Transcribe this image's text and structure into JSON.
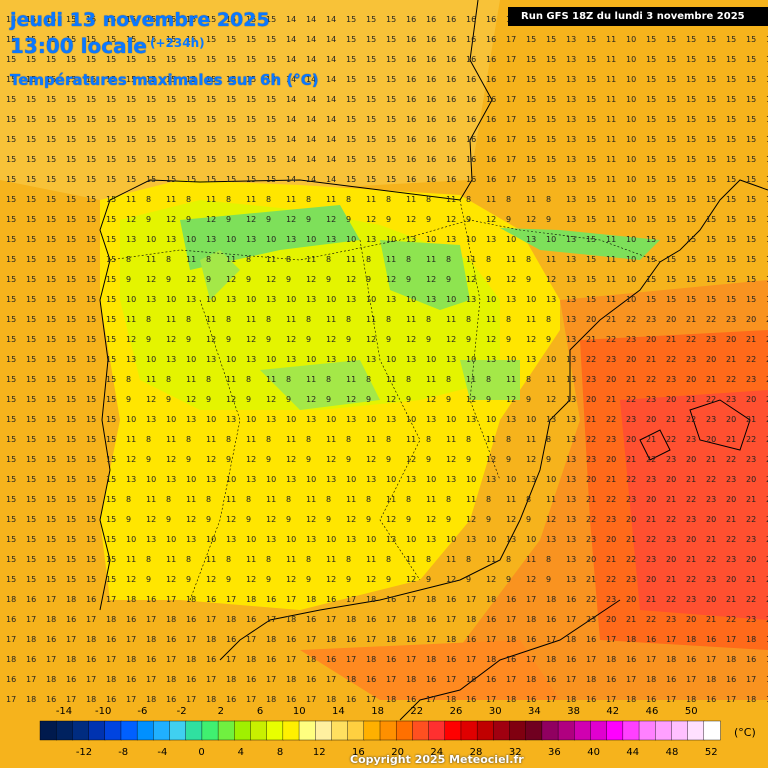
{
  "header": {
    "date": "jeudi 13 novembre 2025",
    "time": "13:00 locale",
    "offset": "(+234h)",
    "parameter": "Températures maximales sur 6h (°C)"
  },
  "run_label": "Run GFS 18Z du lundi 3 novembre 2025",
  "copyright": "Copyright 2025 Meteociel.fr",
  "legend": {
    "unit": "(°C)",
    "top_labels": [
      "-14",
      "-10",
      "-6",
      "-2",
      "2",
      "6",
      "10",
      "14",
      "18",
      "22",
      "26",
      "30",
      "34",
      "38",
      "42",
      "46",
      "50"
    ],
    "bottom_labels": [
      "-12",
      "-8",
      "-4",
      "0",
      "4",
      "8",
      "12",
      "16",
      "20",
      "24",
      "28",
      "32",
      "36",
      "40",
      "44",
      "48",
      "52"
    ],
    "colors": [
      "#001a4d",
      "#00225f",
      "#002c80",
      "#0033b0",
      "#0044e0",
      "#0060ff",
      "#0090ff",
      "#20b0ff",
      "#40d0f0",
      "#30e0a0",
      "#40f070",
      "#70f040",
      "#a0f000",
      "#c8f000",
      "#e8ff00",
      "#fff000",
      "#ffff80",
      "#fff0a0",
      "#ffe060",
      "#ffd040",
      "#ffb000",
      "#ff9000",
      "#ff7000",
      "#ff5020",
      "#ff3030",
      "#ff0000",
      "#e00000",
      "#c00000",
      "#a00010",
      "#800010",
      "#700020",
      "#900060",
      "#b00080",
      "#d000b0",
      "#e000d0",
      "#ff00ff",
      "#ff40ff",
      "#ff80ff",
      "#ffa0ff",
      "#ffc0ff",
      "#ffe0ff",
      "#ffffff"
    ]
  },
  "field": {
    "columns": 39,
    "rows": 38,
    "sample": "15 15 15 15 15 15 15 15 15 15 15 15 15 15 14 14 14 15 15 15 16 16 16 16 16 17 15 15 13 15 11 10 15 15 15 15 15 15 15"
  }
}
